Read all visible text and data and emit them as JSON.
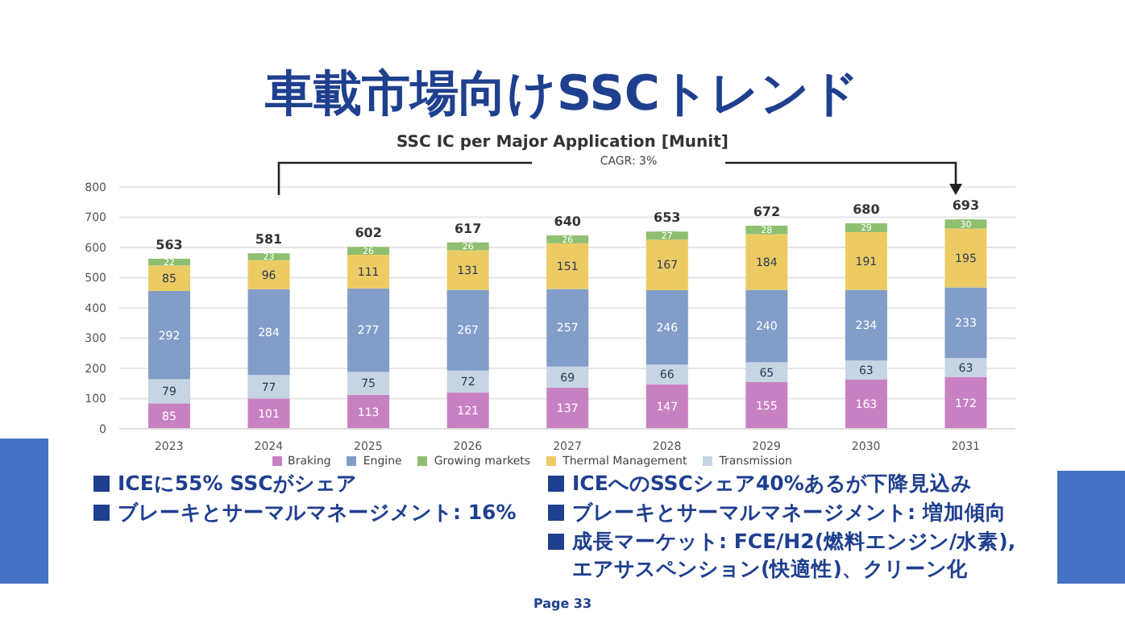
{
  "chart_data": {
    "type": "bar",
    "title": "車載市場向けSSCトレンド",
    "subtitle": "SSC IC per Major Application [Munit]",
    "categories": [
      "2023",
      "2024",
      "2025",
      "2026",
      "2027",
      "2028",
      "2029",
      "2030",
      "2031"
    ],
    "series": [
      {
        "name": "Braking",
        "color": "#c781c2",
        "values": [
          85,
          101,
          113,
          121,
          137,
          147,
          155,
          163,
          172
        ]
      },
      {
        "name": "Transmission",
        "color": "#c6d4e4",
        "values": [
          79,
          77,
          75,
          72,
          69,
          66,
          65,
          63,
          63
        ]
      },
      {
        "name": "Engine",
        "color": "#819dc8",
        "values": [
          292,
          284,
          277,
          267,
          257,
          246,
          240,
          234,
          233
        ]
      },
      {
        "name": "Thermal Management",
        "color": "#edcb63",
        "values": [
          85,
          96,
          111,
          131,
          151,
          167,
          184,
          191,
          195
        ]
      },
      {
        "name": "Growing markets",
        "color": "#8fbf70",
        "values": [
          22,
          23,
          26,
          26,
          26,
          27,
          28,
          29,
          30
        ]
      }
    ],
    "stacked": true,
    "data_labels": true,
    "totals": [
      "563",
      "581",
      "602",
      "617",
      "640",
      "653",
      "672",
      "680",
      "693"
    ],
    "ylim": [
      0,
      800
    ],
    "yticks": [
      0,
      100,
      200,
      300,
      400,
      500,
      600,
      700,
      800
    ],
    "grid": "y",
    "legend": "bottom",
    "annotations": [
      "CAGR: 3%",
      "ICEに55% SSCがシェア",
      "ブレーキとサーマルマネージメント: 16%",
      "ICEへのSSCシェア40%あるが下降見込み",
      "ブレーキとサーマルマネージメント: 増加傾向",
      "成長マーケット: FCE/H2(燃料エンジン/水素), エアサスペンション(快適性)、クリーン化",
      "Page 33"
    ]
  }
}
